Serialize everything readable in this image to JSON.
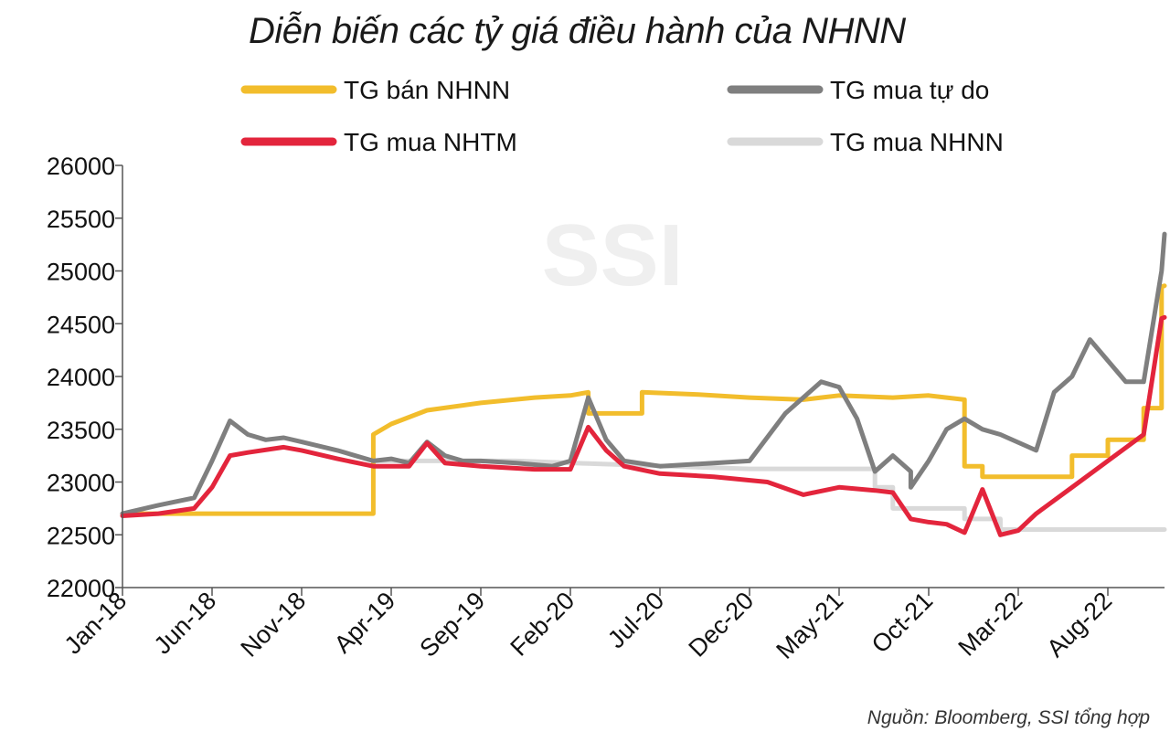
{
  "chart_data": {
    "type": "line",
    "title": "Diễn biến các tỷ giá điều hành của NHNN",
    "source": "Nguồn: Bloomberg, SSI tổng hợp",
    "watermark": "SSI",
    "xlabel": "",
    "ylabel": "",
    "ylim": [
      22000,
      26000
    ],
    "y_ticks": [
      22000,
      22500,
      23000,
      23500,
      24000,
      24500,
      25000,
      25500,
      26000
    ],
    "x_ticks": [
      "Jan-18",
      "Jun-18",
      "Nov-18",
      "Apr-19",
      "Sep-19",
      "Feb-20",
      "Jul-20",
      "Dec-20",
      "May-21",
      "Oct-21",
      "Mar-22",
      "Aug-22"
    ],
    "legend_position": "top",
    "grid": false,
    "series": [
      {
        "name": "TG bán NHNN",
        "color": "#F2BD2C",
        "x": [
          "Jan-18",
          "Mar-19",
          "Mar-19",
          "Apr-19",
          "Jun-19",
          "Sep-19",
          "Dec-19",
          "Feb-20",
          "Mar-20",
          "Mar-20",
          "Jun-20",
          "Jun-20",
          "Sep-20",
          "Dec-20",
          "Mar-21",
          "May-21",
          "Aug-21",
          "Oct-21",
          "Dec-21",
          "Dec-21",
          "Jan-22",
          "Jan-22",
          "Jun-22",
          "Jun-22",
          "Aug-22",
          "Aug-22",
          "Oct-22",
          "Oct-22",
          "Nov-22",
          "Nov-22",
          "Dec-22"
        ],
        "values": [
          22700,
          22700,
          23450,
          23550,
          23680,
          23750,
          23800,
          23820,
          23850,
          23650,
          23650,
          23850,
          23830,
          23800,
          23780,
          23820,
          23800,
          23820,
          23780,
          23150,
          23150,
          23050,
          23050,
          23250,
          23250,
          23400,
          23400,
          23700,
          23700,
          24850,
          24860
        ]
      },
      {
        "name": "TG mua tự do",
        "color": "#7F7F7F",
        "x": [
          "Jan-18",
          "Mar-18",
          "May-18",
          "Jun-18",
          "Jul-18",
          "Aug-18",
          "Sep-18",
          "Oct-18",
          "Nov-18",
          "Jan-19",
          "Mar-19",
          "Apr-19",
          "May-19",
          "Jun-19",
          "Jul-19",
          "Aug-19",
          "Sep-19",
          "Nov-19",
          "Jan-20",
          "Feb-20",
          "Mar-20",
          "Apr-20",
          "May-20",
          "Jul-20",
          "Oct-20",
          "Dec-20",
          "Feb-21",
          "Apr-21",
          "May-21",
          "Jun-21",
          "Jul-21",
          "Aug-21",
          "Sep-21",
          "Sep-21",
          "Oct-21",
          "Nov-21",
          "Dec-21",
          "Jan-22",
          "Feb-22",
          "Apr-22",
          "May-22",
          "Jun-22",
          "Jul-22",
          "Sep-22",
          "Oct-22",
          "Nov-22",
          "Dec-22"
        ],
        "values": [
          22700,
          22780,
          22850,
          23200,
          23580,
          23450,
          23400,
          23420,
          23380,
          23300,
          23200,
          23220,
          23180,
          23380,
          23250,
          23200,
          23200,
          23180,
          23150,
          23200,
          23800,
          23400,
          23200,
          23150,
          23180,
          23200,
          23650,
          23950,
          23900,
          23600,
          23100,
          23250,
          23100,
          22950,
          23200,
          23500,
          23600,
          23500,
          23450,
          23300,
          23850,
          24000,
          24350,
          23950,
          23950,
          25000,
          25350
        ]
      },
      {
        "name": "TG mua NHTM",
        "color": "#E3253C",
        "x": [
          "Jan-18",
          "Mar-18",
          "May-18",
          "Jun-18",
          "Jul-18",
          "Aug-18",
          "Oct-18",
          "Nov-18",
          "Jan-19",
          "Mar-19",
          "May-19",
          "Jun-19",
          "Jul-19",
          "Sep-19",
          "Dec-19",
          "Feb-20",
          "Mar-20",
          "Apr-20",
          "May-20",
          "Jul-20",
          "Oct-20",
          "Jan-21",
          "Mar-21",
          "May-21",
          "Jul-21",
          "Aug-21",
          "Sep-21",
          "Oct-21",
          "Nov-21",
          "Dec-21",
          "Jan-22",
          "Feb-22",
          "Mar-22",
          "Apr-22",
          "Jun-22",
          "Aug-22",
          "Oct-22",
          "Nov-22",
          "Dec-22"
        ],
        "values": [
          22680,
          22700,
          22750,
          22950,
          23250,
          23280,
          23330,
          23300,
          23220,
          23150,
          23150,
          23370,
          23180,
          23150,
          23120,
          23120,
          23520,
          23300,
          23150,
          23080,
          23050,
          23000,
          22880,
          22950,
          22920,
          22900,
          22650,
          22620,
          22600,
          22520,
          22930,
          22500,
          22540,
          22700,
          22950,
          23200,
          23450,
          24550,
          24560
        ]
      },
      {
        "name": "TG mua NHNN",
        "color": "#D9D9D9",
        "x": [
          "Mar-19",
          "Nov-19",
          "Mar-20",
          "Dec-20",
          "Jul-21",
          "Jul-21",
          "Aug-21",
          "Aug-21",
          "Dec-21",
          "Dec-21",
          "Feb-22",
          "Feb-22",
          "Dec-22"
        ],
        "values": [
          23200,
          23200,
          23175,
          23125,
          23125,
          22950,
          22950,
          22750,
          22750,
          22650,
          22650,
          22550,
          22550
        ]
      }
    ]
  }
}
